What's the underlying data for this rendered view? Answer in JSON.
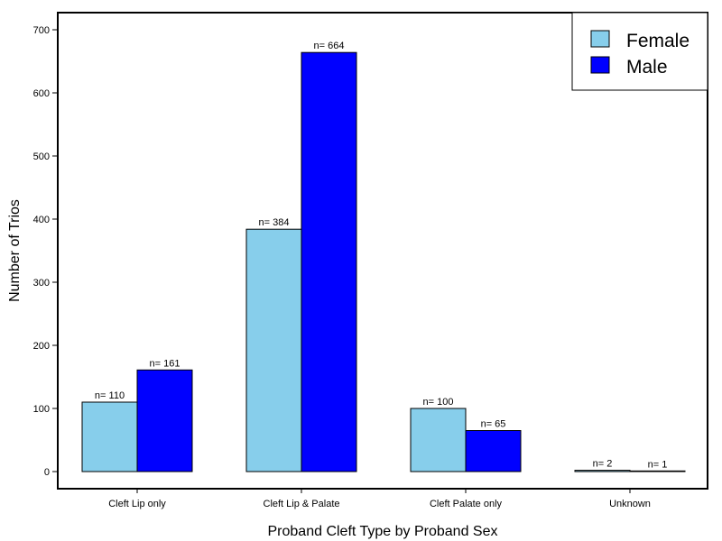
{
  "chart_data": {
    "type": "bar",
    "title": "",
    "xlabel": "Proband Cleft Type by Proband Sex",
    "ylabel": "Number of Trios",
    "categories": [
      "Cleft Lip only",
      "Cleft Lip & Palate",
      "Cleft Palate only",
      "Unknown"
    ],
    "series": [
      {
        "name": "Female",
        "color": "#87CEEB",
        "values": [
          110,
          384,
          100,
          2
        ],
        "labels": [
          "n= 110",
          "n= 384",
          "n= 100",
          "n= 2"
        ]
      },
      {
        "name": "Male",
        "color": "#0000FF",
        "values": [
          161,
          664,
          65,
          1
        ],
        "labels": [
          "n= 161",
          "n= 664",
          "n= 65",
          "n= 1"
        ]
      }
    ],
    "ylim": [
      -28,
      714
    ],
    "yticks": [
      0,
      100,
      200,
      300,
      400,
      500,
      600,
      700
    ],
    "grid": false,
    "legend_position": "top-right"
  }
}
